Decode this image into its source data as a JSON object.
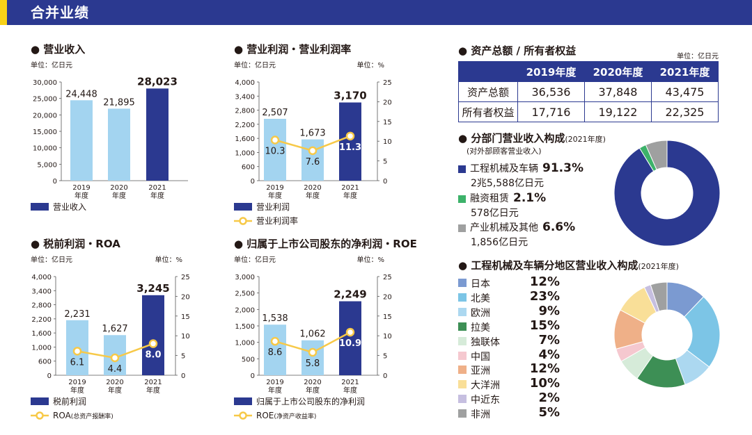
{
  "header": {
    "title": "合并业绩"
  },
  "chart_data": [
    {
      "id": "revenue",
      "type": "bar",
      "title": "营业收入",
      "unit_left": "单位：亿日元",
      "categories": [
        "2019\n年度",
        "2020\n年度",
        "2021\n年度"
      ],
      "values": [
        24448,
        21895,
        28023
      ],
      "value_labels": [
        "24,448",
        "21,895",
        "28,023"
      ],
      "yticks": [
        "30,000",
        "25,000",
        "20,000",
        "15,000",
        "10,000",
        "5,000",
        "0"
      ],
      "ylim": [
        0,
        30000
      ],
      "legend": [
        "营业收入"
      ]
    },
    {
      "id": "op_profit",
      "type": "bar",
      "title": "营业利润・营业利润率",
      "unit_left": "单位：亿日元",
      "unit_right": "单位：%",
      "categories": [
        "2019\n年度",
        "2020\n年度",
        "2021\n年度"
      ],
      "values": [
        2507,
        1673,
        3170
      ],
      "value_labels": [
        "2,507",
        "1,673",
        "3,170"
      ],
      "line_values": [
        10.3,
        7.6,
        11.3
      ],
      "line_labels": [
        "10.3",
        "7.6",
        "11.3"
      ],
      "yticks": [
        "4,000",
        "3,400",
        "2,800",
        "2,200",
        "1,600",
        "1,000",
        "600",
        "0"
      ],
      "yticks_right": [
        "25",
        "20",
        "15",
        "10",
        "5",
        "0"
      ],
      "ylim": [
        0,
        4000
      ],
      "ylim_right": [
        0,
        25
      ],
      "legend": [
        "营业利润",
        "营业利润率"
      ]
    },
    {
      "id": "pretax",
      "type": "bar",
      "title": "税前利润・ROA",
      "unit_left": "单位：亿日元",
      "unit_right": "单位：%",
      "categories": [
        "2019\n年度",
        "2020\n年度",
        "2021\n年度"
      ],
      "values": [
        2231,
        1627,
        3245
      ],
      "value_labels": [
        "2,231",
        "1,627",
        "3,245"
      ],
      "line_values": [
        6.1,
        4.4,
        8.0
      ],
      "line_labels": [
        "6.1",
        "4.4",
        "8.0"
      ],
      "yticks": [
        "4,000",
        "3,400",
        "2,800",
        "2,200",
        "1,600",
        "1,000",
        "600",
        "0"
      ],
      "yticks_right": [
        "25",
        "20",
        "15",
        "10",
        "5",
        "0"
      ],
      "ylim": [
        0,
        4000
      ],
      "ylim_right": [
        0,
        25
      ],
      "legend": [
        "税前利润",
        "ROA",
        "(总资产报酬率)"
      ]
    },
    {
      "id": "net_profit",
      "type": "bar",
      "title": "归属于上市公司股东的净利润・ROE",
      "unit_left": "单位：亿日元",
      "unit_right": "单位：%",
      "categories": [
        "2019\n年度",
        "2020\n年度",
        "2021\n年度"
      ],
      "values": [
        1538,
        1062,
        2249
      ],
      "value_labels": [
        "1,538",
        "1,062",
        "2,249"
      ],
      "line_values": [
        8.6,
        5.8,
        10.9
      ],
      "line_labels": [
        "8.6",
        "5.8",
        "10.9"
      ],
      "yticks": [
        "3,000",
        "2,500",
        "2,000",
        "1,500",
        "1,000",
        "500",
        "0"
      ],
      "yticks_right": [
        "25",
        "20",
        "15",
        "10",
        "5",
        "0"
      ],
      "ylim": [
        0,
        3000
      ],
      "ylim_right": [
        0,
        25
      ],
      "legend": [
        "归属于上市公司股东的净利润",
        "ROE",
        "(净资产收益率)"
      ]
    },
    {
      "id": "segment",
      "type": "pie",
      "title": "分部门营业收入构成",
      "title_note": "(2021年度)",
      "subtitle": "(对外部顾客营业收入)",
      "labels": [
        "工程机械及车辆",
        "融资租赁",
        "产业机械及其他"
      ],
      "values": [
        91.3,
        2.1,
        6.6
      ],
      "value_labels": [
        "91.3%",
        "2.1%",
        "6.6%"
      ],
      "sub_labels": [
        "2兆5,588亿日元",
        "578亿日元",
        "1,856亿日元"
      ],
      "colors": [
        "#2b3990",
        "#3db26a",
        "#9fa0a0"
      ]
    },
    {
      "id": "region",
      "type": "pie",
      "title": "工程机械及车辆分地区营业收入构成",
      "title_note": "(2021年度)",
      "labels": [
        "日本",
        "北美",
        "欧洲",
        "拉美",
        "独联体",
        "中国",
        "亚洲",
        "大洋洲",
        "中近东",
        "非洲"
      ],
      "values": [
        12,
        23,
        9,
        15,
        7,
        4,
        12,
        10,
        2,
        5
      ],
      "value_labels": [
        "12%",
        "23%",
        "9%",
        "15%",
        "7%",
        "4%",
        "12%",
        "10%",
        "2%",
        "5%"
      ],
      "colors": [
        "#7b9ad1",
        "#7cc5e6",
        "#acd8f0",
        "#3d8f55",
        "#d6ebd9",
        "#f5c8cf",
        "#efb088",
        "#f9df98",
        "#c6bfe0",
        "#9fa0a0"
      ]
    }
  ],
  "assets": {
    "title": "资产总额 / 所有者权益",
    "unit": "单位：亿日元",
    "columns": [
      "2019年度",
      "2020年度",
      "2021年度"
    ],
    "rows": [
      {
        "label": "资产总额",
        "values": [
          "36,536",
          "37,848",
          "43,475"
        ]
      },
      {
        "label": "所有者权益",
        "values": [
          "17,716",
          "19,122",
          "22,325"
        ]
      }
    ]
  },
  "colors": {
    "navy": "#2b3990",
    "light_blue": "#a3d4f0",
    "yellow": "#f7c948",
    "header_accent": "#f7d117"
  }
}
